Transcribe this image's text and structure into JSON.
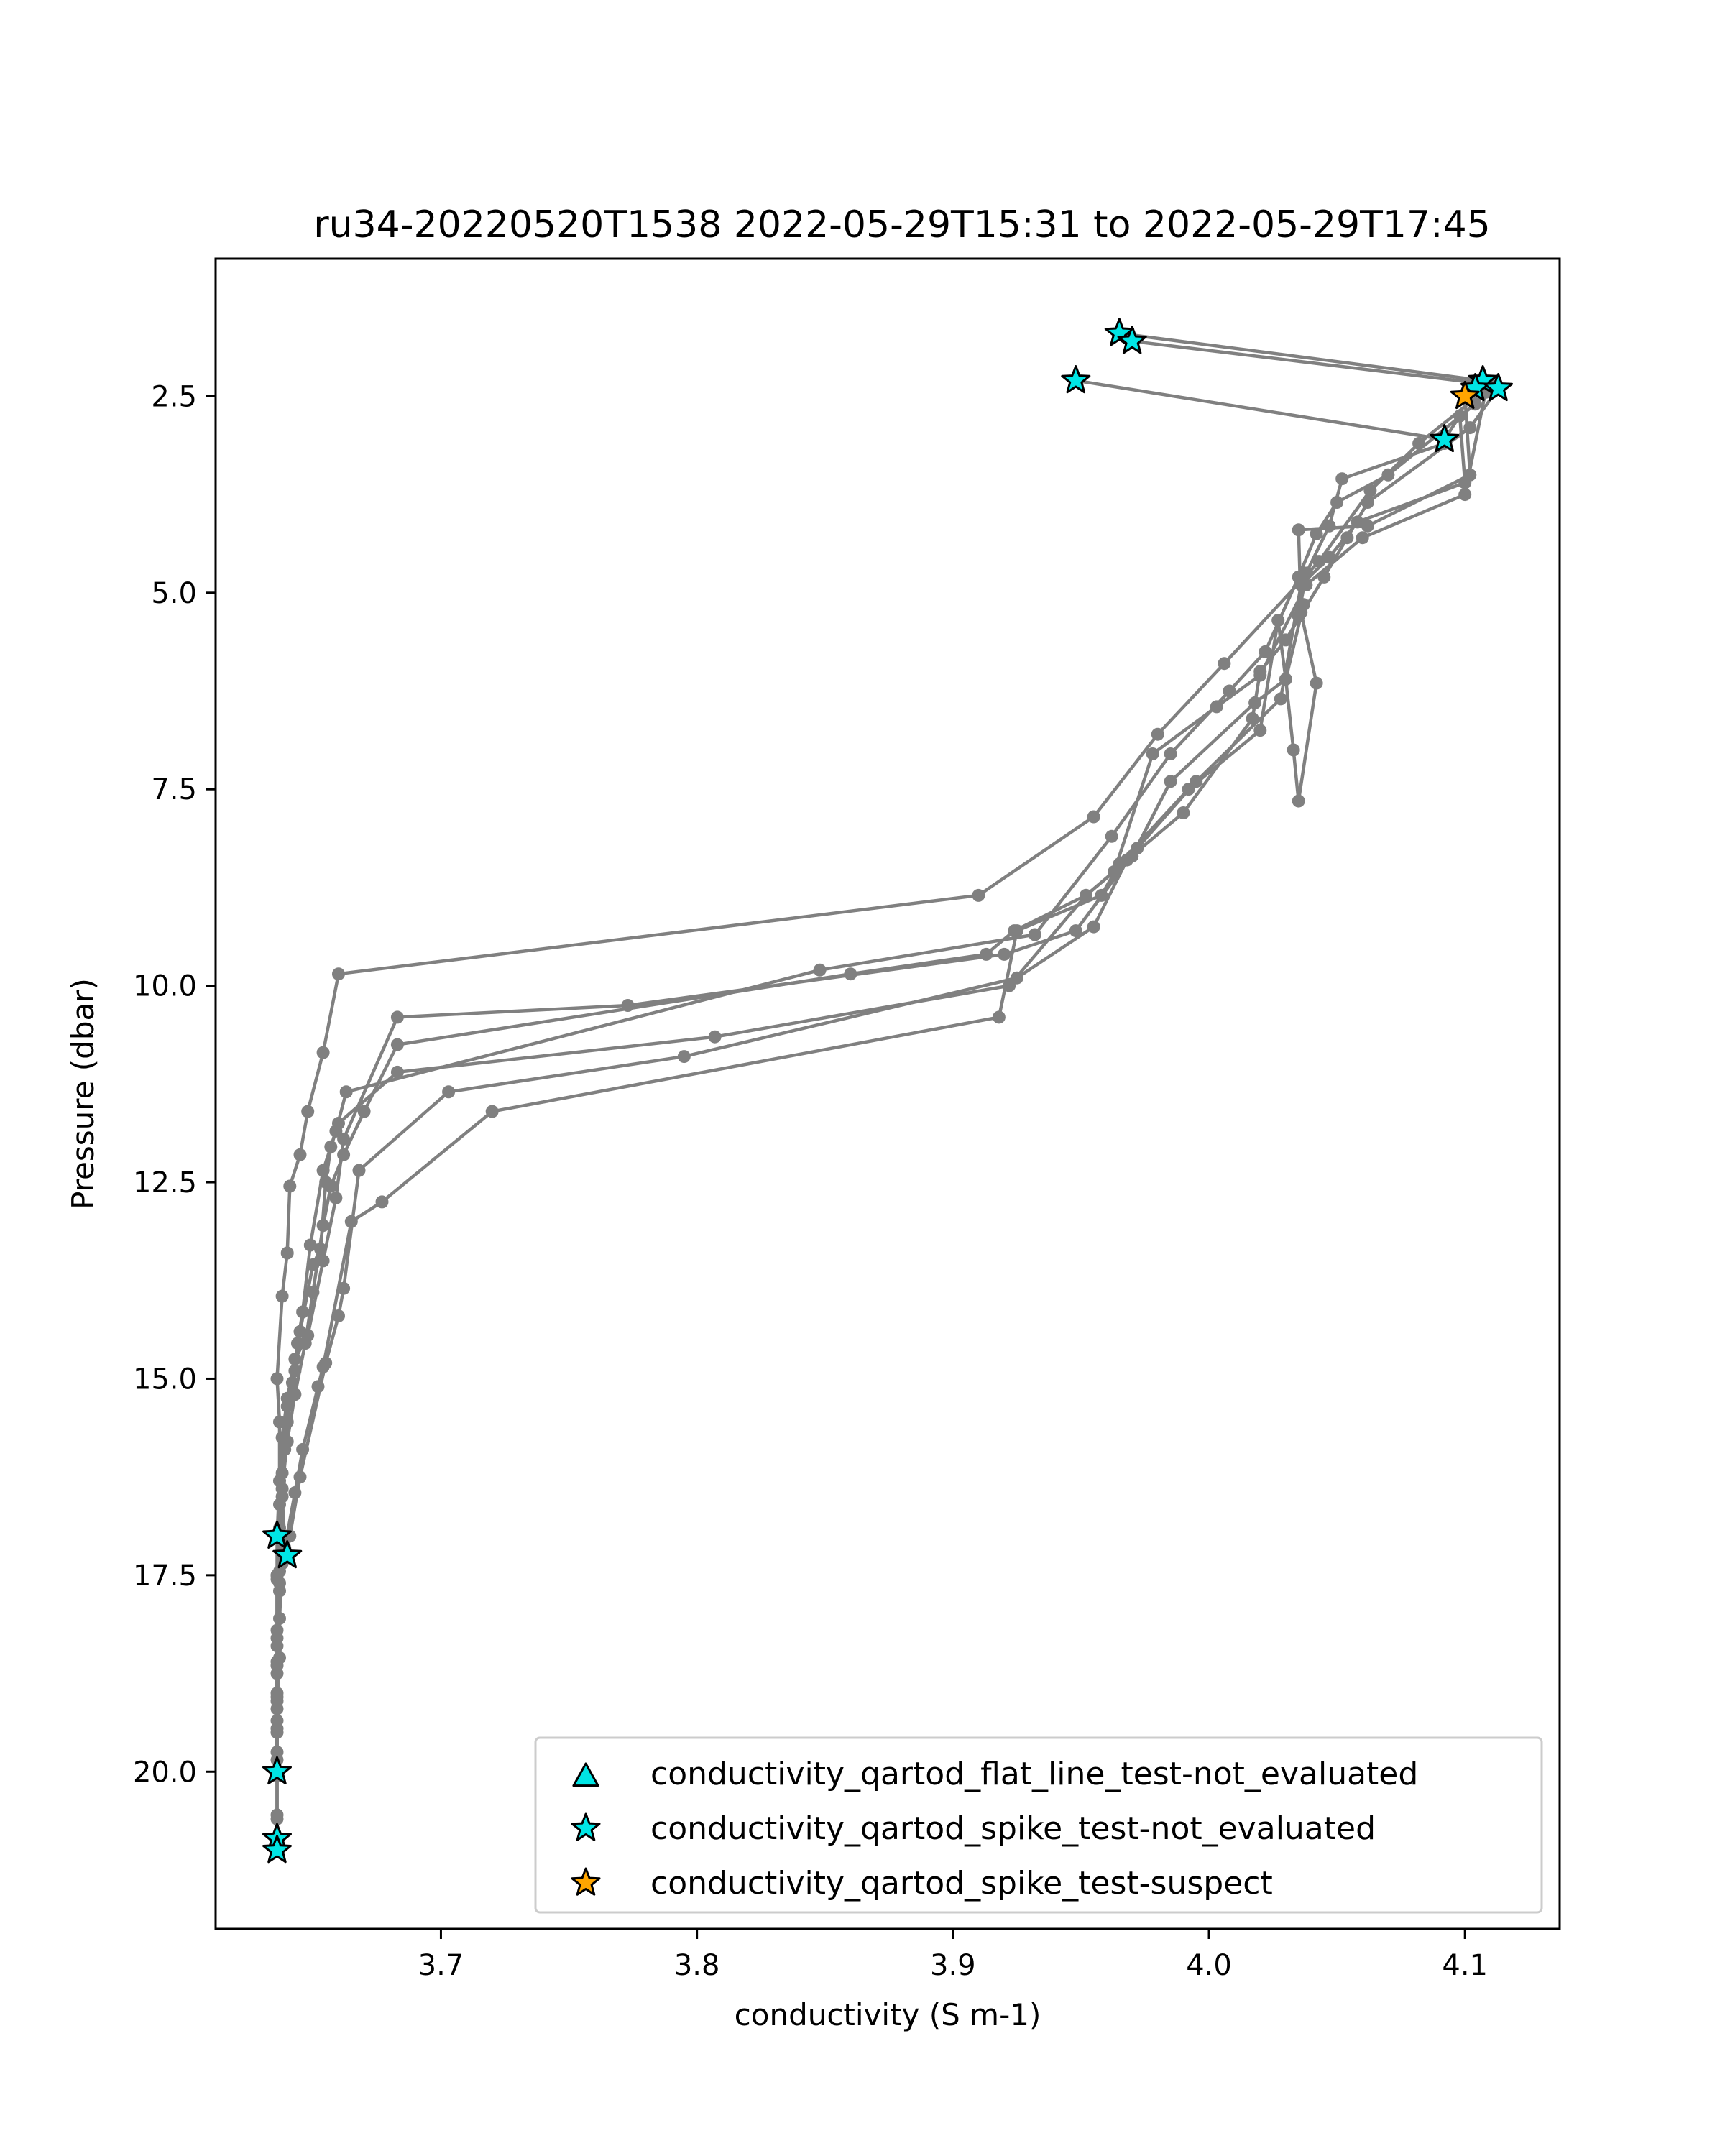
{
  "chart_data": {
    "type": "scatter",
    "title": "ru34-20220520T1538 2022-05-29T15:31 to 2022-05-29T17:45",
    "xlabel": "conductivity (S m-1)",
    "ylabel": "Pressure (dbar)",
    "xlim": [
      3.612,
      4.137
    ],
    "ylim": [
      22.0,
      0.75
    ],
    "y_inverted": true,
    "xticks": [
      "3.7",
      "3.8",
      "3.9",
      "4.0",
      "4.1"
    ],
    "yticks": [
      "2.5",
      "5.0",
      "7.5",
      "10.0",
      "12.5",
      "15.0",
      "17.5",
      "20.0"
    ],
    "grid": false,
    "legend_position": "lower-right",
    "colors": {
      "profile_line": "#808080",
      "not_evaluated": "#00e5e5",
      "suspect": "#ffa500",
      "marker_edge": "#000000"
    },
    "legend": [
      {
        "label": "conductivity_qartod_flat_line_test-not_evaluated",
        "marker": "triangle",
        "color": "#00e5e5"
      },
      {
        "label": "conductivity_qartod_spike_test-not_evaluated",
        "marker": "star",
        "color": "#00e5e5"
      },
      {
        "label": "conductivity_qartod_spike_test-suspect",
        "marker": "star",
        "color": "#ffa500"
      }
    ],
    "series": [
      {
        "values": [
          [
            3.965,
            1.7
          ],
          [
            4.107,
            2.3
          ],
          [
            4.103,
            2.55
          ],
          [
            4.082,
            3.1
          ],
          [
            4.063,
            3.7
          ],
          [
            4.043,
            4.6
          ],
          [
            4.006,
            5.9
          ],
          [
            3.98,
            6.8
          ],
          [
            3.955,
            7.85
          ],
          [
            3.91,
            8.85
          ],
          [
            3.66,
            9.85
          ],
          [
            3.654,
            10.85
          ],
          [
            3.648,
            11.6
          ],
          [
            3.645,
            12.15
          ],
          [
            3.641,
            12.55
          ],
          [
            3.64,
            13.4
          ],
          [
            3.638,
            13.95
          ],
          [
            3.636,
            15.0
          ],
          [
            3.637,
            15.55
          ],
          [
            3.637,
            16.3
          ],
          [
            3.636,
            17.0
          ],
          [
            3.636,
            17.5
          ],
          [
            3.636,
            18.2
          ],
          [
            3.636,
            19.0
          ],
          [
            3.636,
            19.5
          ],
          [
            3.636,
            20.0
          ]
        ]
      },
      {
        "values": [
          [
            3.97,
            1.8
          ],
          [
            4.11,
            2.35
          ],
          [
            4.104,
            2.6
          ],
          [
            4.07,
            3.5
          ],
          [
            4.05,
            3.85
          ],
          [
            4.042,
            4.25
          ],
          [
            4.035,
            4.8
          ],
          [
            4.022,
            5.75
          ],
          [
            4.008,
            6.25
          ],
          [
            3.985,
            7.05
          ],
          [
            3.962,
            8.1
          ],
          [
            3.932,
            9.35
          ],
          [
            3.848,
            9.8
          ],
          [
            3.663,
            11.35
          ],
          [
            3.659,
            11.85
          ],
          [
            3.657,
            12.05
          ],
          [
            3.655,
            12.5
          ],
          [
            3.653,
            13.35
          ],
          [
            3.65,
            13.55
          ],
          [
            3.645,
            14.4
          ],
          [
            3.643,
            14.9
          ],
          [
            3.64,
            15.35
          ],
          [
            3.639,
            15.9
          ],
          [
            3.638,
            16.5
          ],
          [
            3.639,
            17.05
          ],
          [
            3.64,
            17.25
          ],
          [
            3.637,
            17.6
          ],
          [
            3.637,
            18.55
          ],
          [
            3.636,
            19.2
          ],
          [
            3.636,
            20.05
          ]
        ]
      },
      {
        "values": [
          [
            3.948,
            2.3
          ],
          [
            4.092,
            3.05
          ],
          [
            4.098,
            2.75
          ],
          [
            4.1,
            3.6
          ],
          [
            4.058,
            4.1
          ],
          [
            4.047,
            4.55
          ],
          [
            4.036,
            4.9
          ],
          [
            4.028,
            6.35
          ],
          [
            3.995,
            7.4
          ],
          [
            3.972,
            8.25
          ],
          [
            3.948,
            9.3
          ],
          [
            3.92,
            9.6
          ],
          [
            3.773,
            10.25
          ],
          [
            3.683,
            10.4
          ],
          [
            3.662,
            11.95
          ],
          [
            3.659,
            12.7
          ],
          [
            3.654,
            13.5
          ],
          [
            3.648,
            14.45
          ],
          [
            3.643,
            14.75
          ],
          [
            3.64,
            15.25
          ],
          [
            3.638,
            15.75
          ],
          [
            3.637,
            16.6
          ],
          [
            3.637,
            17.45
          ],
          [
            3.636,
            18.75
          ],
          [
            3.636,
            19.75
          ],
          [
            3.636,
            20.6
          ],
          [
            3.636,
            20.85
          ]
        ]
      },
      {
        "values": [
          [
            4.108,
            2.45
          ],
          [
            4.1,
            3.75
          ],
          [
            4.06,
            4.3
          ],
          [
            4.038,
            4.9
          ],
          [
            4.02,
            6.05
          ],
          [
            4.003,
            6.45
          ],
          [
            3.978,
            7.05
          ],
          [
            3.963,
            8.55
          ],
          [
            3.952,
            8.85
          ],
          [
            3.922,
            10.0
          ],
          [
            3.807,
            10.65
          ],
          [
            3.683,
            11.1
          ],
          [
            3.66,
            11.75
          ],
          [
            3.654,
            12.35
          ],
          [
            3.649,
            13.3
          ],
          [
            3.646,
            14.15
          ],
          [
            3.644,
            14.55
          ],
          [
            3.642,
            15.05
          ],
          [
            3.64,
            15.55
          ],
          [
            3.638,
            16.2
          ],
          [
            3.637,
            16.9
          ],
          [
            3.636,
            17.5
          ],
          [
            3.636,
            18.4
          ],
          [
            3.636,
            19.85
          ],
          [
            3.636,
            20.55
          ],
          [
            3.636,
            21.0
          ]
        ]
      },
      {
        "values": [
          [
            4.113,
            2.4
          ],
          [
            4.102,
            2.9
          ],
          [
            4.062,
            3.85
          ],
          [
            4.054,
            4.3
          ],
          [
            4.045,
            4.8
          ],
          [
            4.03,
            5.6
          ],
          [
            4.02,
            6.0
          ],
          [
            4.017,
            6.6
          ],
          [
            3.99,
            7.8
          ],
          [
            3.968,
            8.4
          ],
          [
            3.955,
            9.25
          ],
          [
            3.925,
            9.9
          ],
          [
            3.795,
            10.9
          ],
          [
            3.703,
            11.35
          ],
          [
            3.668,
            12.35
          ],
          [
            3.662,
            13.85
          ],
          [
            3.66,
            14.2
          ],
          [
            3.655,
            14.8
          ],
          [
            3.645,
            16.25
          ],
          [
            3.641,
            17.0
          ],
          [
            3.638,
            17.35
          ],
          [
            3.637,
            18.05
          ],
          [
            3.636,
            18.65
          ],
          [
            3.636,
            19.1
          ],
          [
            3.636,
            19.45
          ],
          [
            3.636,
            20.0
          ],
          [
            3.636,
            20.9
          ]
        ]
      },
      {
        "values": [
          [
            4.1,
            2.5
          ],
          [
            4.102,
            3.5
          ],
          [
            4.062,
            4.15
          ],
          [
            4.035,
            4.2
          ],
          [
            4.036,
            5.25
          ],
          [
            4.042,
            6.15
          ],
          [
            4.035,
            7.65
          ],
          [
            4.033,
            7.0
          ],
          [
            4.03,
            6.1
          ],
          [
            4.027,
            5.35
          ],
          [
            4.02,
            6.75
          ],
          [
            3.992,
            7.5
          ],
          [
            3.965,
            8.45
          ],
          [
            3.958,
            8.85
          ],
          [
            3.925,
            9.3
          ],
          [
            3.918,
            10.4
          ],
          [
            3.72,
            11.6
          ],
          [
            3.677,
            12.75
          ],
          [
            3.665,
            13.0
          ],
          [
            3.654,
            14.85
          ],
          [
            3.652,
            15.1
          ],
          [
            3.646,
            15.9
          ],
          [
            3.643,
            16.45
          ],
          [
            3.639,
            17.15
          ],
          [
            3.637,
            17.7
          ],
          [
            3.636,
            18.6
          ],
          [
            3.636,
            19.35
          ],
          [
            3.636,
            20.0
          ]
        ]
      },
      {
        "values": [
          [
            4.092,
            3.1
          ],
          [
            4.052,
            3.55
          ],
          [
            4.047,
            4.15
          ],
          [
            4.038,
            4.75
          ],
          [
            4.035,
            5.3
          ],
          [
            4.037,
            5.15
          ],
          [
            4.03,
            6.1
          ],
          [
            4.018,
            6.4
          ],
          [
            3.985,
            7.4
          ],
          [
            3.97,
            8.35
          ],
          [
            3.952,
            8.85
          ],
          [
            3.924,
            9.3
          ],
          [
            3.913,
            9.6
          ],
          [
            3.86,
            9.85
          ],
          [
            3.683,
            10.75
          ],
          [
            3.67,
            11.6
          ],
          [
            3.662,
            12.15
          ],
          [
            3.657,
            12.55
          ],
          [
            3.654,
            13.05
          ],
          [
            3.65,
            13.9
          ],
          [
            3.647,
            14.55
          ],
          [
            3.643,
            15.2
          ],
          [
            3.64,
            15.8
          ],
          [
            3.638,
            16.4
          ],
          [
            3.637,
            17.0
          ],
          [
            3.636,
            17.55
          ],
          [
            3.636,
            18.3
          ],
          [
            3.636,
            19.05
          ],
          [
            3.636,
            20.05
          ]
        ]
      }
    ],
    "flags": [
      {
        "test": "spike_test",
        "status": "not_evaluated",
        "points": [
          [
            3.965,
            1.7
          ],
          [
            3.97,
            1.8
          ],
          [
            3.948,
            2.3
          ],
          [
            4.107,
            2.3
          ],
          [
            4.104,
            2.4
          ],
          [
            4.113,
            2.4
          ],
          [
            4.092,
            3.05
          ],
          [
            3.636,
            17.0
          ],
          [
            3.64,
            17.25
          ],
          [
            3.636,
            20.0
          ],
          [
            3.636,
            20.85
          ],
          [
            3.636,
            21.0
          ]
        ]
      },
      {
        "test": "spike_test",
        "status": "suspect",
        "points": [
          [
            4.1,
            2.5
          ]
        ]
      }
    ]
  }
}
